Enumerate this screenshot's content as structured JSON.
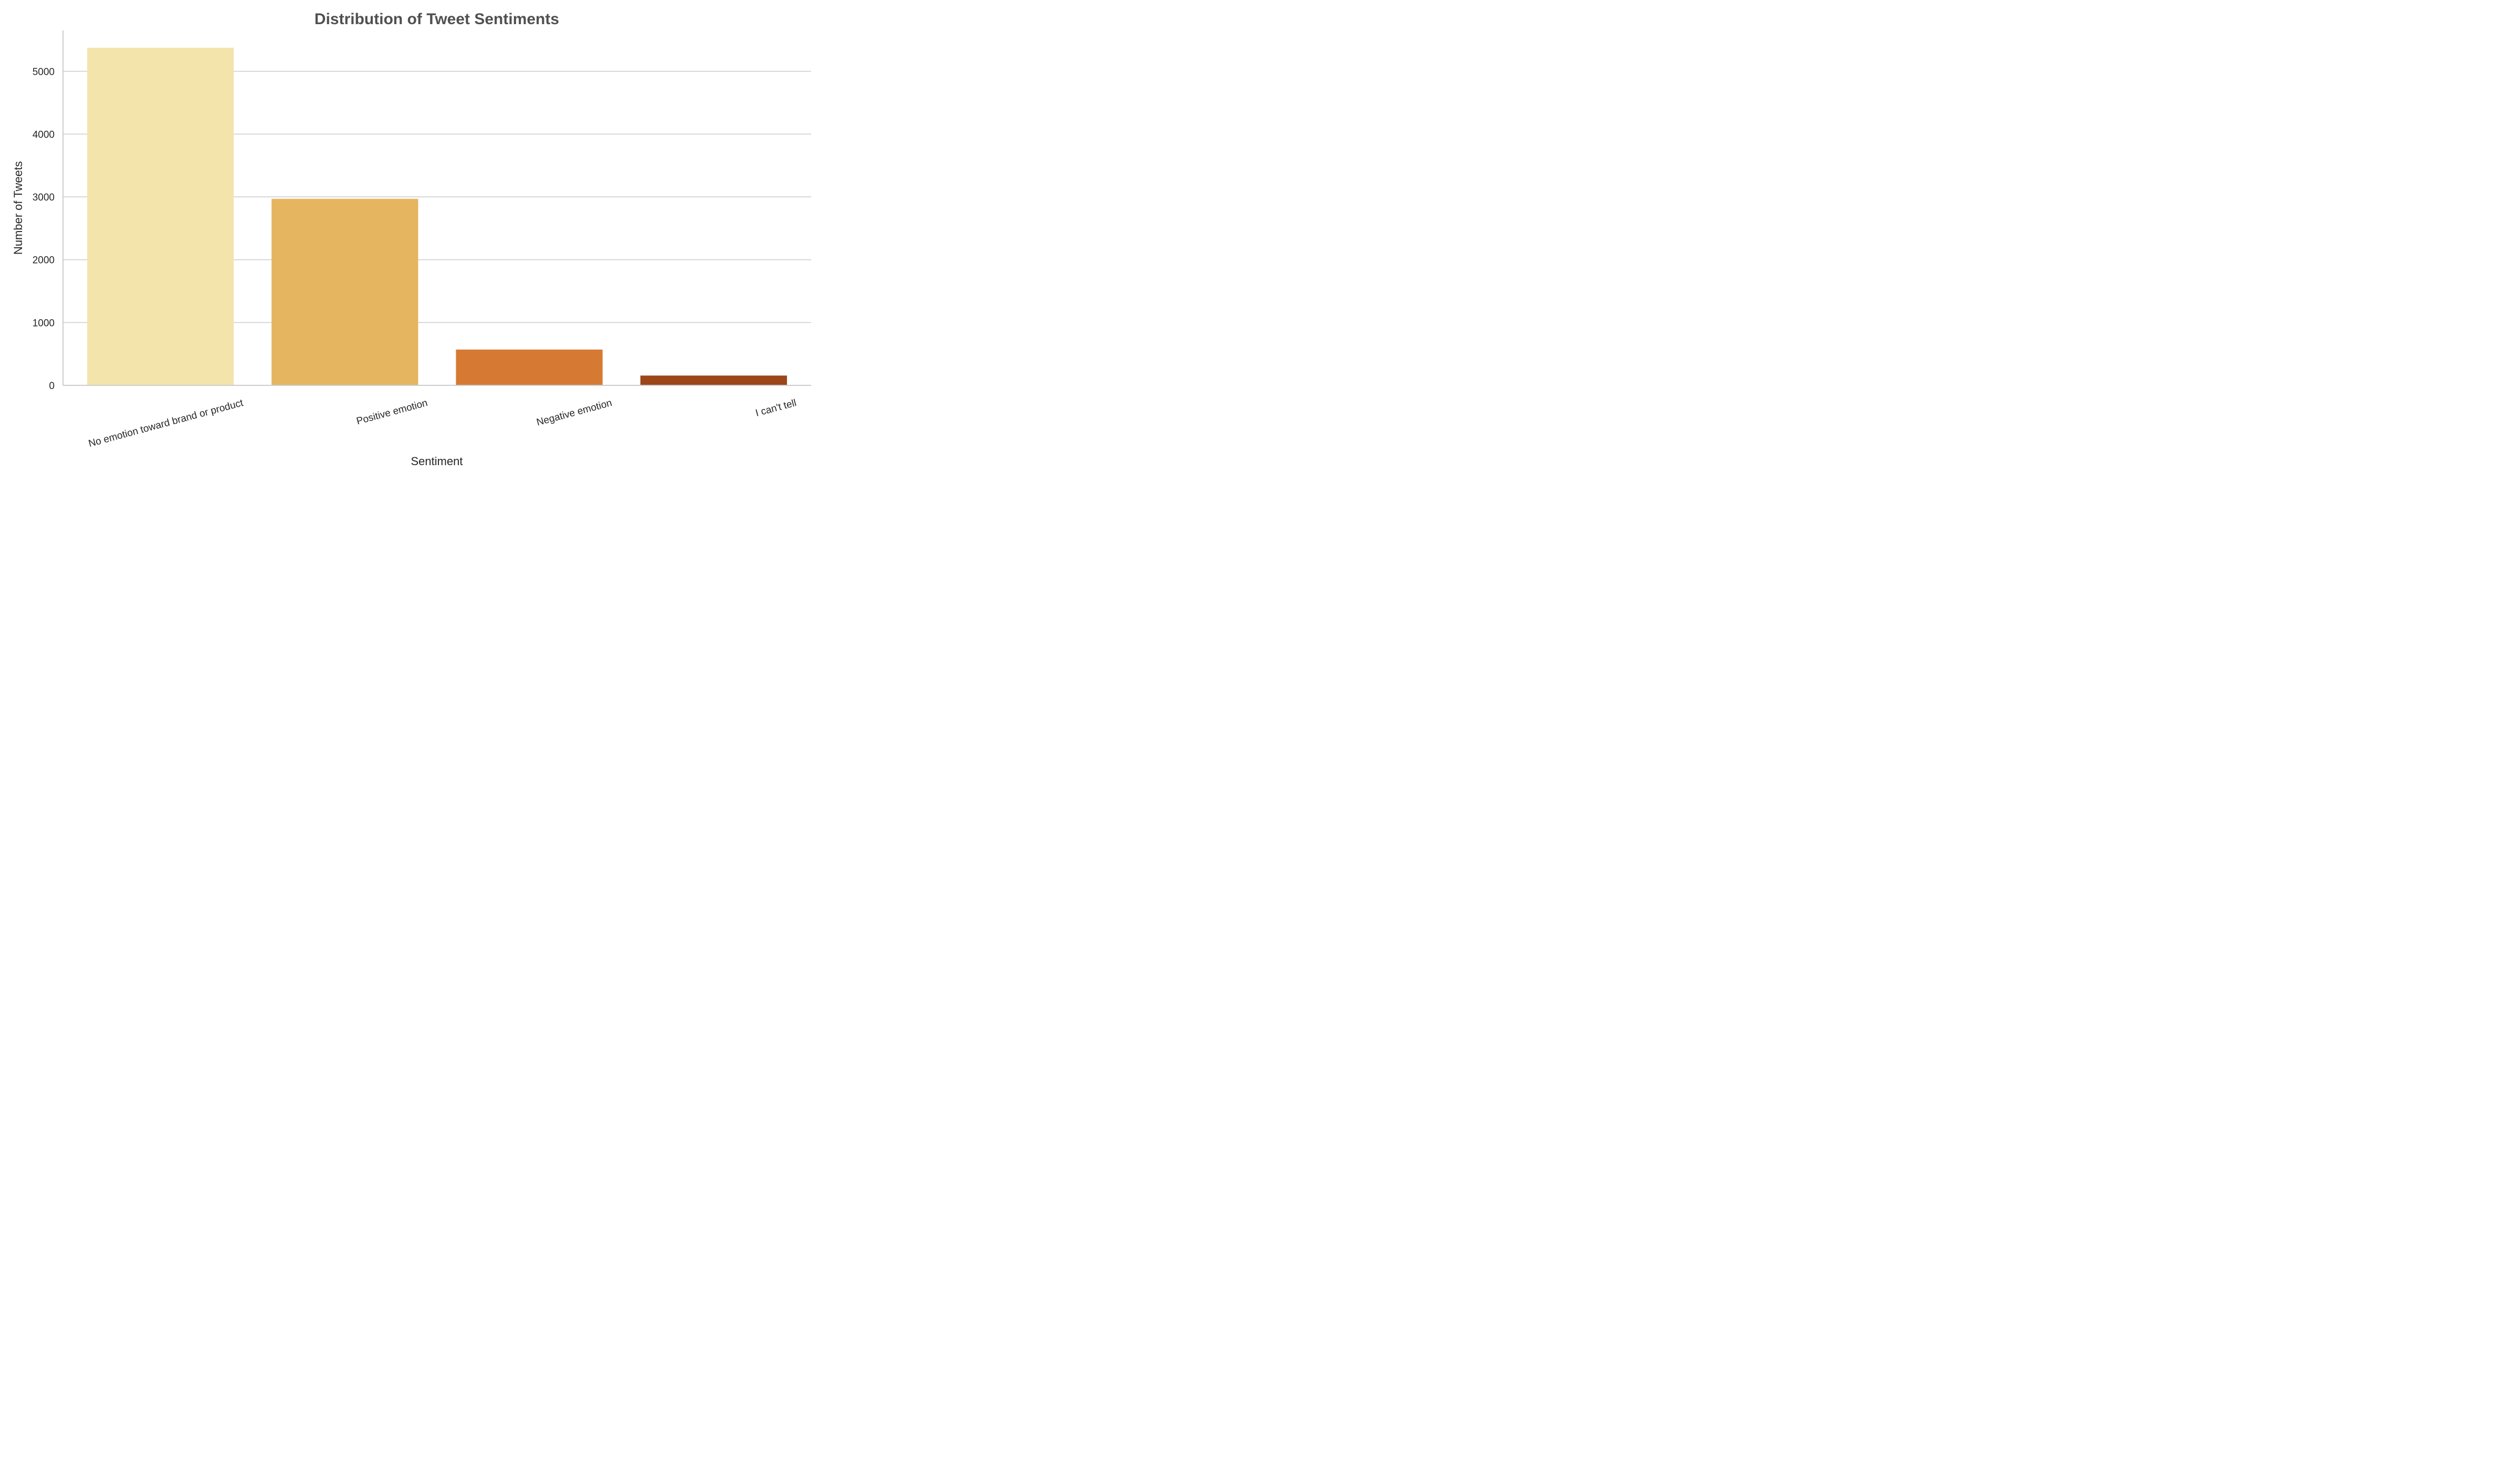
{
  "chart_data": {
    "type": "bar",
    "title": "Distribution of Tweet Sentiments",
    "xlabel": "Sentiment",
    "ylabel": "Number of Tweets",
    "categories": [
      "No emotion toward brand or product",
      "Positive emotion",
      "Negative emotion",
      "I can't tell"
    ],
    "values": [
      5375,
      2970,
      570,
      156
    ],
    "colors": [
      "#f3e4ab",
      "#e6b55f",
      "#d67a33",
      "#9c4619"
    ],
    "ylim": [
      0,
      5650
    ],
    "yticks": [
      0,
      1000,
      2000,
      3000,
      4000,
      5000
    ],
    "grid": "horizontal",
    "legend": "none"
  }
}
